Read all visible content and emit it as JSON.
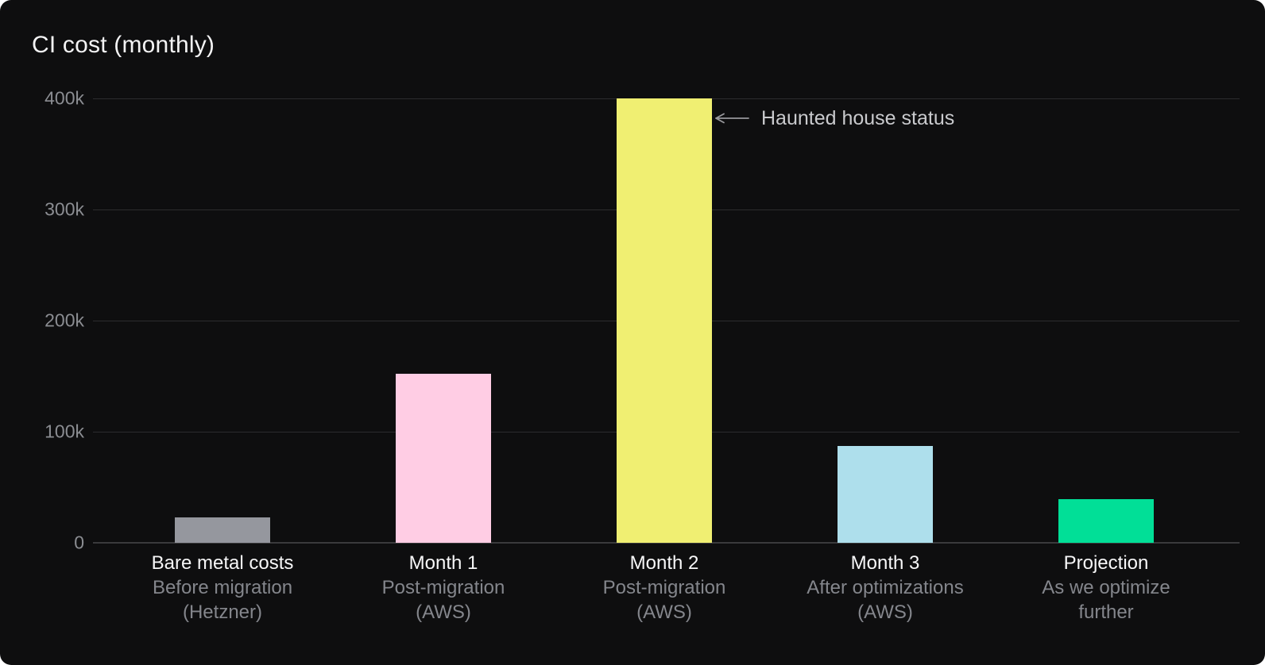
{
  "title": "CI cost (monthly)",
  "annotation": {
    "text": "Haunted house status",
    "icon": "left-arrow",
    "target_category": "Month 2"
  },
  "chart_data": {
    "type": "bar",
    "title": "CI cost (monthly)",
    "categories": [
      {
        "label": "Bare metal costs",
        "sublabel_lines": [
          "Before migration",
          "(Hetzner)"
        ]
      },
      {
        "label": "Month 1",
        "sublabel_lines": [
          "Post-migration",
          "(AWS)"
        ]
      },
      {
        "label": "Month 2",
        "sublabel_lines": [
          "Post-migration",
          "(AWS)"
        ]
      },
      {
        "label": "Month 3",
        "sublabel_lines": [
          "After optimizations",
          "(AWS)"
        ]
      },
      {
        "label": "Projection",
        "sublabel_lines": [
          "As we optimize",
          "further"
        ]
      }
    ],
    "values": [
      23000,
      152000,
      400000,
      87000,
      39000
    ],
    "bar_colors": [
      "#95979e",
      "#ffcde4",
      "#f0ef72",
      "#aedfec",
      "#01df97"
    ],
    "y_ticks": [
      {
        "label": "400k",
        "value": 400000
      },
      {
        "label": "300k",
        "value": 300000
      },
      {
        "label": "200k",
        "value": 200000
      },
      {
        "label": "100k",
        "value": 100000
      },
      {
        "label": "0",
        "value": 0
      }
    ],
    "ylim": [
      0,
      400000
    ],
    "xlabel": "",
    "ylabel": "",
    "grid": "horizontal",
    "legend": "none",
    "annotations": [
      {
        "text": "Haunted house status",
        "category": "Month 2",
        "arrow": "points-left-at-bar-top"
      }
    ],
    "colors": {
      "background": "#0e0e0f",
      "title_text": "#f3f3f4",
      "tick_text": "#8b8d92",
      "category_main_text": "#f7f7f8",
      "category_sub_text": "#84868c",
      "gridline": "#2c2c2e",
      "baseline": "#3a3a3c",
      "annotation_text": "#c9cacd",
      "annotation_arrow": "#98989c"
    }
  }
}
